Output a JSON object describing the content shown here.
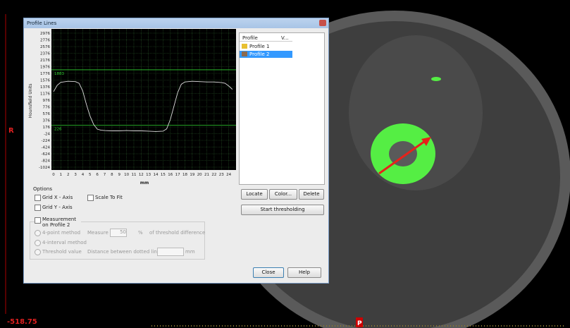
{
  "window": {
    "title": "Profile Lines"
  },
  "chart_data": {
    "type": "line",
    "xlabel": "mm",
    "ylabel": "Hounsfield Units",
    "x": [
      0,
      0.5,
      1,
      2,
      3,
      3.5,
      4,
      4.5,
      5,
      5.5,
      6,
      6.5,
      7,
      8,
      9,
      10,
      11,
      12,
      13,
      14,
      15,
      15.5,
      16,
      16.5,
      17,
      17.5,
      18,
      19,
      20,
      21,
      22,
      23,
      23.5,
      24,
      24.5
    ],
    "values": [
      1230,
      1420,
      1510,
      1540,
      1530,
      1480,
      1250,
      850,
      500,
      250,
      110,
      80,
      70,
      60,
      60,
      70,
      60,
      60,
      50,
      40,
      50,
      120,
      400,
      800,
      1200,
      1450,
      1520,
      1540,
      1530,
      1520,
      1520,
      1500,
      1480,
      1400,
      1300
    ],
    "color": "#dcdcdc",
    "xlim": [
      0,
      25
    ],
    "xticks": [
      0,
      1,
      2,
      3,
      4,
      5,
      6,
      7,
      8,
      9,
      10,
      11,
      12,
      13,
      14,
      15,
      16,
      17,
      18,
      19,
      20,
      21,
      22,
      23,
      24
    ],
    "ylim": [
      -1024,
      2976
    ],
    "yticks": [
      2976,
      2776,
      2576,
      2376,
      2176,
      1976,
      1776,
      1576,
      1376,
      1176,
      976,
      776,
      576,
      376,
      176,
      -24,
      -224,
      -424,
      -624,
      -824,
      -1024
    ],
    "grid": true,
    "thresholds": [
      1883,
      226
    ],
    "threshold_color": "#2fd12f"
  },
  "profile_list": {
    "headers": [
      "Profile",
      "V..."
    ],
    "rows": [
      "Profile 1",
      "Profile 2"
    ]
  },
  "buttons": {
    "locate": "Locate",
    "color": "Color...",
    "delete": "Delete",
    "start": "Start thresholding",
    "close": "Close",
    "help": "Help"
  },
  "options": {
    "title": "Options",
    "grid_x": "Grid X - Axis",
    "scale_to_fit": "Scale To Fit",
    "grid_y": "Grid Y - Axis",
    "measurement": "Measurement on Profile 2",
    "four_point": "4-point method",
    "four_interval": "4-interval method",
    "threshold_value": "Threshold value",
    "measure_at": "Measure at",
    "measure_value": "50",
    "percent": "%",
    "threshold_diff": "of threshold difference",
    "distance": "Distance between dotted lines:",
    "mm": "mm"
  },
  "viewer": {
    "orientation_left": "R",
    "coordinate": "-518.75",
    "orientation_bottom": "P"
  }
}
